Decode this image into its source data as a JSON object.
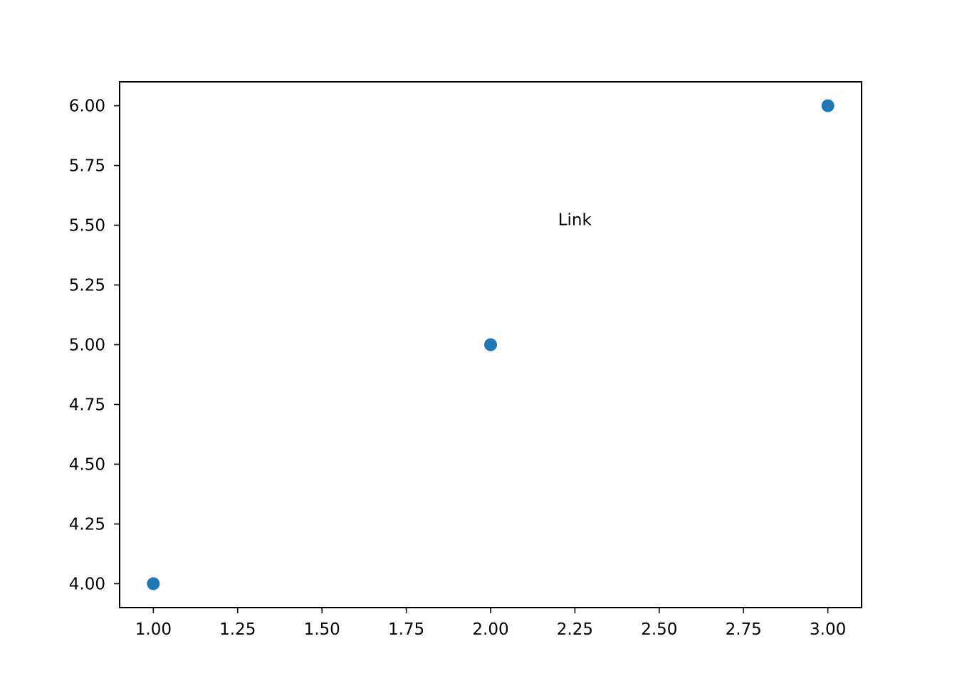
{
  "chart_data": {
    "type": "scatter",
    "title": "",
    "xlabel": "",
    "ylabel": "",
    "xlim": [
      0.9,
      3.1
    ],
    "ylim": [
      3.9,
      6.1
    ],
    "xticks": [
      1.0,
      1.25,
      1.5,
      1.75,
      2.0,
      2.25,
      2.5,
      2.75,
      3.0
    ],
    "xtick_labels": [
      "1.00",
      "1.25",
      "1.50",
      "1.75",
      "2.00",
      "2.25",
      "2.50",
      "2.75",
      "3.00"
    ],
    "yticks": [
      4.0,
      4.25,
      4.5,
      4.75,
      5.0,
      5.25,
      5.5,
      5.75,
      6.0
    ],
    "ytick_labels": [
      "4.00",
      "4.25",
      "4.50",
      "4.75",
      "5.00",
      "5.25",
      "5.50",
      "5.75",
      "6.00"
    ],
    "grid": false,
    "series": [
      {
        "color": "#1f77b4",
        "x": [
          1,
          2,
          3
        ],
        "y": [
          4,
          5,
          6
        ]
      }
    ],
    "annotations": [
      {
        "text": "Link",
        "x": 2.2,
        "y": 5.5
      }
    ]
  }
}
